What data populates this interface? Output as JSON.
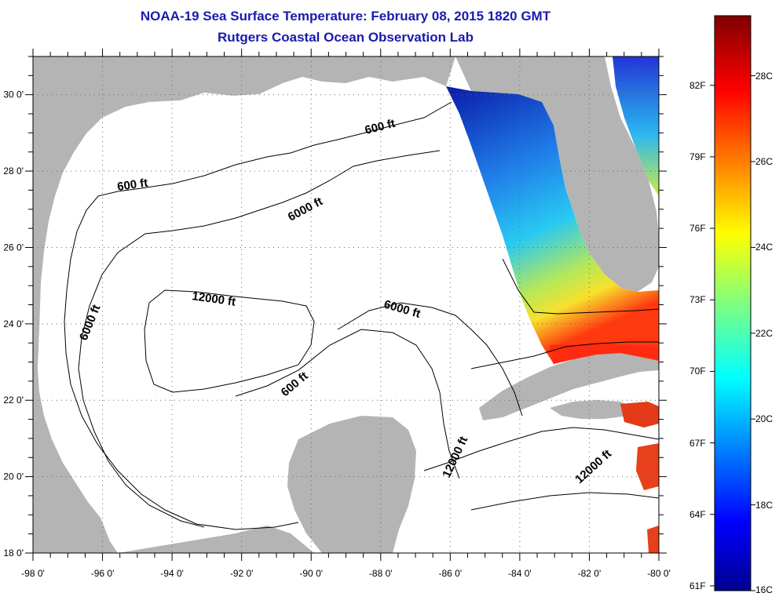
{
  "title": {
    "line1": "NOAA-19 Sea Surface Temperature:  February 08, 2015 1820 GMT",
    "line2": "Rutgers Coastal Ocean Observation Lab"
  },
  "axes": {
    "lon_ticks": [
      "-98 0'",
      "-96 0'",
      "-94 0'",
      "-92 0'",
      "-90 0'",
      "-88 0'",
      "-86 0'",
      "-84 0'",
      "-82 0'",
      "-80 0'"
    ],
    "lat_ticks": [
      "18 0'",
      "20 0'",
      "22 0'",
      "24 0'",
      "26 0'",
      "28 0'",
      "30 0'"
    ],
    "lon_range": [
      -98,
      -80
    ],
    "lat_range": [
      18,
      31
    ]
  },
  "contour_labels": [
    "600 ft",
    "600 ft",
    "6000 ft",
    "12000 ft",
    "6000 ft",
    "6000 ft",
    "600 ft",
    "12000 ft",
    "12000 ft"
  ],
  "colorbar": {
    "fahrenheit": [
      "82F",
      "79F",
      "76F",
      "73F",
      "70F",
      "67F",
      "64F",
      "61F"
    ],
    "celsius": [
      "28C",
      "26C",
      "24C",
      "22C",
      "20C",
      "18C",
      "16C"
    ],
    "range_c": [
      16,
      29.4
    ]
  },
  "colors": {
    "land": "#b4b4b4",
    "ocean": "#ffffff",
    "title": "#1a1ab0"
  }
}
